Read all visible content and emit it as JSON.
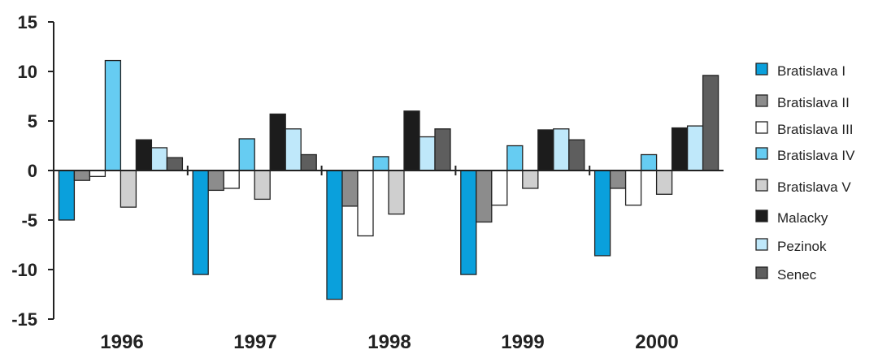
{
  "chart_data": {
    "type": "bar",
    "categories": [
      "1996",
      "1997",
      "1998",
      "1999",
      "2000"
    ],
    "yticks": [
      "15",
      "10",
      "5",
      "0",
      "-5",
      "-10",
      "-15"
    ],
    "ylim": [
      -15,
      15
    ],
    "legend_position": "right",
    "series": [
      {
        "name": "Bratislava I",
        "color": "#0aa0dc",
        "values": [
          -5.0,
          -10.5,
          -13.0,
          -10.5,
          -8.6
        ]
      },
      {
        "name": "Bratislava II",
        "color": "#8c8c8c",
        "values": [
          -1.0,
          -2.0,
          -3.6,
          -5.2,
          -1.8
        ]
      },
      {
        "name": "Bratislava III",
        "color": "#ffffff",
        "values": [
          -0.6,
          -1.8,
          -6.6,
          -3.5,
          -3.5
        ]
      },
      {
        "name": "Bratislava IV",
        "color": "#66ccf2",
        "values": [
          11.1,
          3.2,
          1.4,
          2.5,
          1.6
        ]
      },
      {
        "name": "Bratislava V",
        "color": "#cfcfcf",
        "values": [
          -3.7,
          -2.9,
          -4.4,
          -1.8,
          -2.4
        ]
      },
      {
        "name": "Malacky",
        "color": "#1c1c1c",
        "values": [
          3.1,
          5.7,
          6.0,
          4.1,
          4.3
        ]
      },
      {
        "name": "Pezinok",
        "color": "#bfe8fa",
        "values": [
          2.3,
          4.2,
          3.4,
          4.2,
          4.5
        ]
      },
      {
        "name": "Senec",
        "color": "#5e5e5e",
        "values": [
          1.3,
          1.6,
          4.2,
          3.1,
          9.6
        ]
      }
    ]
  }
}
